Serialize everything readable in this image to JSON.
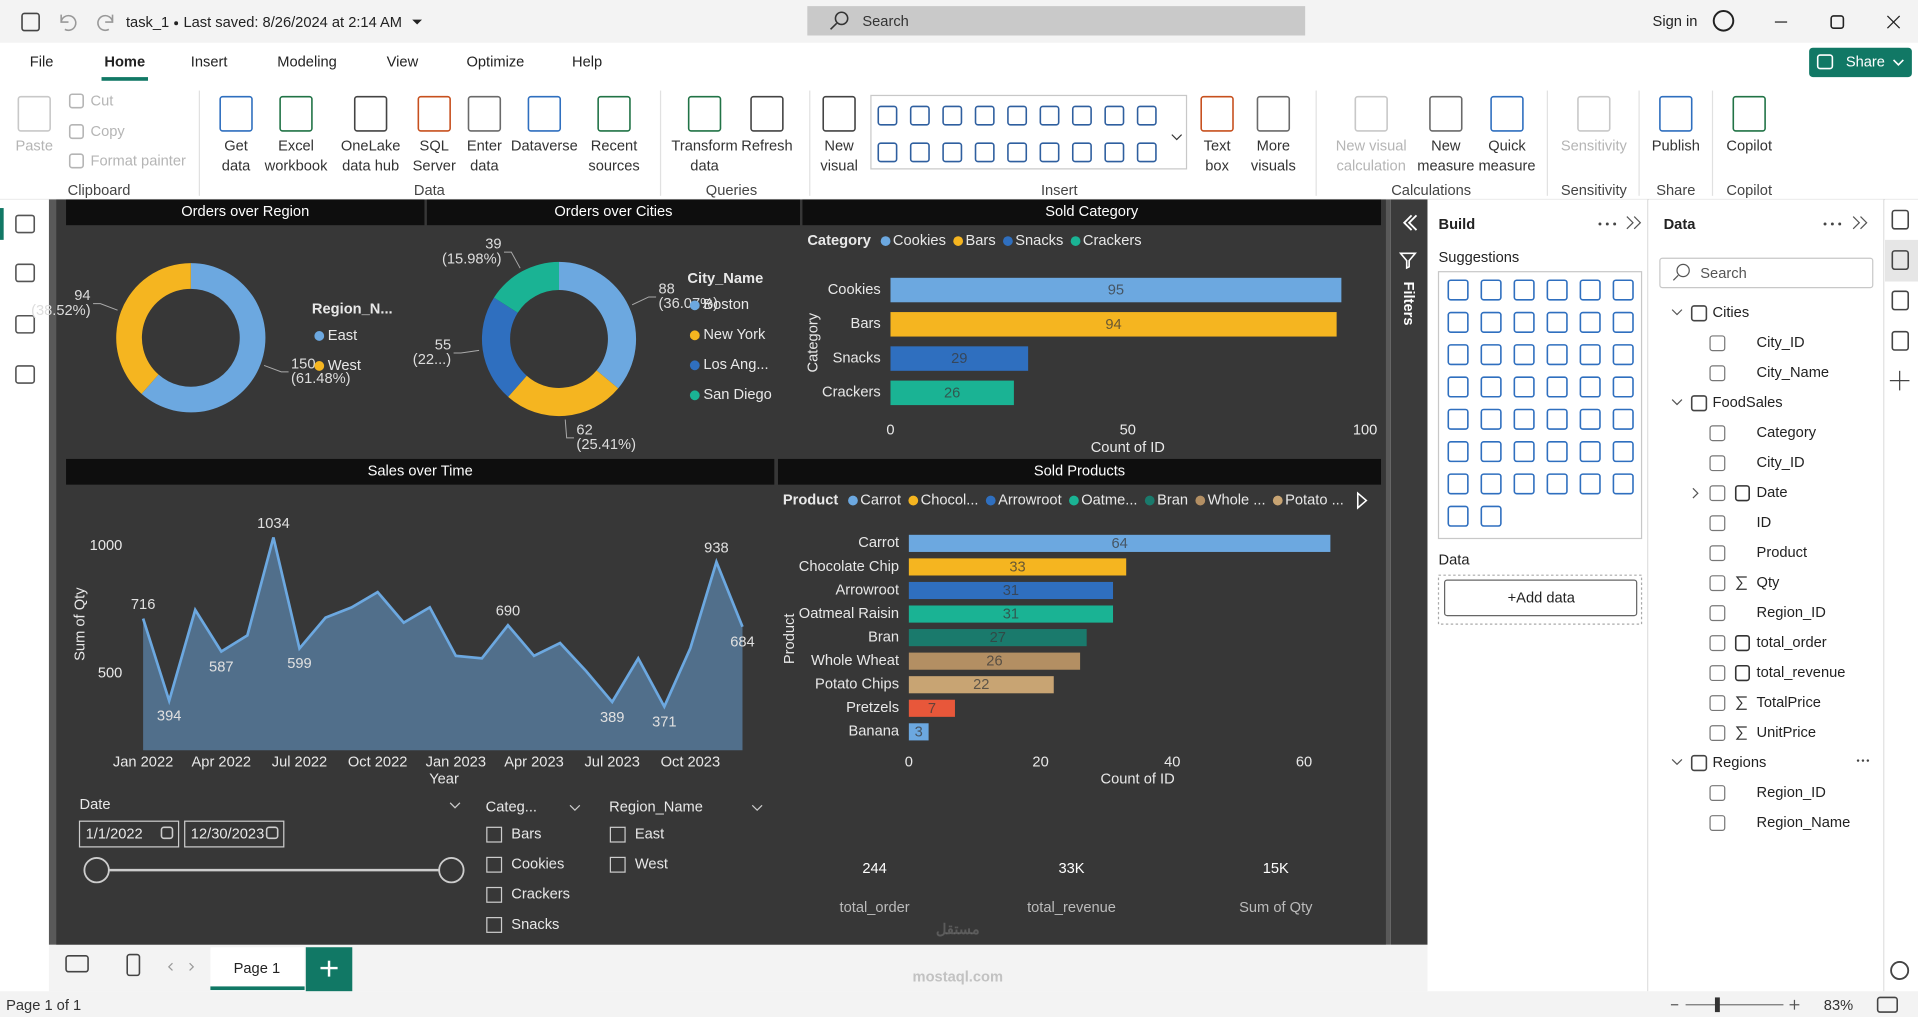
{
  "title_bar": {
    "document": "task_1",
    "saved": "Last saved: 8/26/2024 at 2:14 AM",
    "search": "Search",
    "sign_in": "Sign in"
  },
  "menu": {
    "tabs": [
      "File",
      "Home",
      "Insert",
      "Modeling",
      "View",
      "Optimize",
      "Help"
    ],
    "active": 1,
    "share": "Share"
  },
  "ribbon": {
    "groups": [
      {
        "label": "Clipboard",
        "buttons": [
          {
            "lines": [
              "Paste"
            ],
            "disabled": true
          },
          {
            "lines": [
              "Cut"
            ],
            "disabled": true
          },
          {
            "lines": [
              "Copy"
            ],
            "disabled": true
          },
          {
            "lines": [
              "Format painter"
            ],
            "disabled": true
          }
        ]
      },
      {
        "label": "Data",
        "buttons": [
          {
            "lines": [
              "Get",
              "data"
            ]
          },
          {
            "lines": [
              "Excel",
              "workbook"
            ]
          },
          {
            "lines": [
              "OneLake",
              "data hub"
            ]
          },
          {
            "lines": [
              "SQL",
              "Server"
            ]
          },
          {
            "lines": [
              "Enter",
              "data"
            ]
          },
          {
            "lines": [
              "Dataverse"
            ]
          },
          {
            "lines": [
              "Recent",
              "sources"
            ]
          }
        ]
      },
      {
        "label": "Queries",
        "buttons": [
          {
            "lines": [
              "Transform",
              "data"
            ]
          },
          {
            "lines": [
              "Refresh"
            ]
          }
        ]
      },
      {
        "label": "Insert",
        "buttons": [
          {
            "lines": [
              "New",
              "visual"
            ]
          },
          {
            "lines": [
              "Text",
              "box"
            ]
          },
          {
            "lines": [
              "More",
              "visuals"
            ]
          }
        ]
      },
      {
        "label": "Calculations",
        "buttons": [
          {
            "lines": [
              "New visual",
              "calculation"
            ],
            "disabled": true
          },
          {
            "lines": [
              "New",
              "measure"
            ]
          },
          {
            "lines": [
              "Quick",
              "measure"
            ]
          }
        ]
      },
      {
        "label": "Sensitivity",
        "buttons": [
          {
            "lines": [
              "Sensitivity"
            ],
            "disabled": true
          }
        ]
      },
      {
        "label": "Share",
        "buttons": [
          {
            "lines": [
              "Publish"
            ]
          }
        ]
      },
      {
        "label": "Copilot",
        "buttons": [
          {
            "lines": [
              "Copilot"
            ]
          }
        ]
      }
    ]
  },
  "chart_data": [
    {
      "type": "donut",
      "title": "Orders over Region",
      "legend_title": "Region_N...",
      "categories": [
        "East",
        "West"
      ],
      "values": [
        150,
        94
      ],
      "percent_labels": [
        "(61.48%)",
        "(38.52%)"
      ],
      "colors": [
        "#6ca8e0",
        "#f5b520"
      ]
    },
    {
      "type": "donut",
      "title": "Orders over Cities",
      "legend_title": "City_Name",
      "categories": [
        "Boston",
        "New York",
        "Los Ang...",
        "San Diego"
      ],
      "values": [
        88,
        62,
        55,
        39
      ],
      "percent_labels": [
        "(36.07%)",
        "(25.41%)",
        "(22...)",
        "(15.98%)"
      ],
      "colors": [
        "#6ca8e0",
        "#f5b520",
        "#2f6fbf",
        "#1ab394"
      ]
    },
    {
      "type": "hbar",
      "title": "Sold Category",
      "legend_title": "Category",
      "categories": [
        "Cookies",
        "Bars",
        "Snacks",
        "Crackers"
      ],
      "values": [
        95,
        94,
        29,
        26
      ],
      "colors": [
        "#6ca8e0",
        "#f5b520",
        "#2f6fbf",
        "#1ab394"
      ],
      "xlim": [
        0,
        100
      ],
      "xticks": [
        0,
        50,
        100
      ],
      "x_label": "Count of ID",
      "y_label": "Category"
    },
    {
      "type": "area",
      "title": "Sales over Time",
      "categories": [
        "Jan 2022",
        null,
        null,
        "Apr 2022",
        null,
        null,
        "Jul 2022",
        null,
        null,
        "Oct 2022",
        null,
        null,
        "Jan 2023",
        null,
        null,
        "Apr 2023",
        null,
        null,
        "Jul 2023",
        null,
        null,
        "Oct 2023",
        null,
        null
      ],
      "values": [
        716,
        394,
        750,
        587,
        650,
        1034,
        599,
        720,
        760,
        820,
        700,
        760,
        570,
        560,
        690,
        570,
        620,
        510,
        389,
        560,
        371,
        600,
        938,
        684
      ],
      "value_labels": [
        "716",
        "394",
        null,
        "587",
        null,
        "1034",
        "599",
        null,
        null,
        null,
        null,
        null,
        null,
        null,
        "690",
        null,
        null,
        null,
        "389",
        null,
        "371",
        null,
        "938",
        "684"
      ],
      "color": "#6ca8e0",
      "ylim": [
        200,
        1150
      ],
      "yticks": [
        500,
        1000
      ],
      "x_label": "Year",
      "y_label": "Sum of Qty"
    },
    {
      "type": "hbar",
      "title": "Sold Products",
      "legend_title": "Product",
      "legend": [
        "Carrot",
        "Chocol...",
        "Arrowroot",
        "Oatme...",
        "Bran",
        "Whole ...",
        "Potato ..."
      ],
      "categories": [
        "Carrot",
        "Chocolate Chip",
        "Arrowroot",
        "Oatmeal Raisin",
        "Bran",
        "Whole Wheat",
        "Potato Chips",
        "Pretzels",
        "Banana"
      ],
      "values": [
        64,
        33,
        31,
        31,
        27,
        26,
        22,
        7,
        3
      ],
      "colors": [
        "#6ca8e0",
        "#f5b520",
        "#2f6fbf",
        "#1ab394",
        "#1a7a6c",
        "#b38f63",
        "#c8a473",
        "#e8573a",
        "#6ca8e0"
      ],
      "xlim": [
        0,
        65
      ],
      "xticks": [
        0,
        20,
        40,
        60
      ],
      "x_label": "Count of ID",
      "y_label": "Product"
    }
  ],
  "slicers": {
    "date": {
      "title": "Date",
      "start": "1/1/2022",
      "end": "12/30/2023"
    },
    "category": {
      "title": "Categ...",
      "items": [
        "Bars",
        "Cookies",
        "Crackers",
        "Snacks"
      ]
    },
    "region": {
      "title": "Region_Name",
      "items": [
        "East",
        "West"
      ]
    }
  },
  "cards": [
    {
      "value": "244",
      "label": "total_order"
    },
    {
      "value": "33K",
      "label": "total_revenue"
    },
    {
      "value": "15K",
      "label": "Sum of Qty"
    }
  ],
  "page_tabs": [
    "Page 1"
  ],
  "filters": "Filters",
  "build_pane": {
    "title": "Build",
    "suggestions": "Suggestions",
    "data": "Data",
    "add_data": "+Add data"
  },
  "data_pane": {
    "title": "Data",
    "search": "Search",
    "tables": [
      {
        "name": "Cities",
        "fields": [
          {
            "name": "City_ID"
          },
          {
            "name": "City_Name"
          }
        ]
      },
      {
        "name": "FoodSales",
        "fields": [
          {
            "name": "Category"
          },
          {
            "name": "City_ID"
          },
          {
            "name": "Date",
            "icon": "date"
          },
          {
            "name": "ID"
          },
          {
            "name": "Product"
          },
          {
            "name": "Qty",
            "icon": "sum"
          },
          {
            "name": "Region_ID"
          },
          {
            "name": "total_order",
            "icon": "measure"
          },
          {
            "name": "total_revenue",
            "icon": "measure"
          },
          {
            "name": "TotalPrice",
            "icon": "sum"
          },
          {
            "name": "UnitPrice",
            "icon": "sum"
          }
        ]
      },
      {
        "name": "Regions",
        "fields": [
          {
            "name": "Region_ID"
          },
          {
            "name": "Region_Name"
          }
        ]
      }
    ]
  },
  "status_bar": {
    "page": "Page 1 of 1",
    "zoom": "83%"
  },
  "watermark": [
    "مستقل",
    "mostaql.com"
  ]
}
